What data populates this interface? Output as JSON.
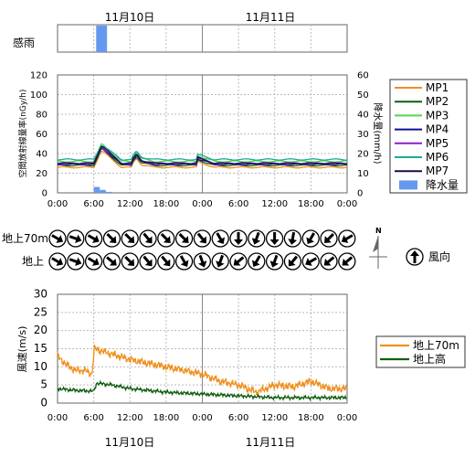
{
  "dates": [
    "11月10日",
    "11月11日"
  ],
  "rain_sense": {
    "label": "感雨",
    "active_periods": [
      [
        6.4,
        8.2
      ]
    ]
  },
  "x_ticks": [
    "0:00",
    "6:00",
    "12:00",
    "18:00",
    "0:00",
    "6:00",
    "12:00",
    "18:00",
    "0:00"
  ],
  "dose_chart": {
    "left_axis_label": "空間放射線量率(nGy/h)",
    "right_axis_label": "降水量(mm/h)",
    "left_ticks": [
      0,
      20,
      40,
      60,
      80,
      100,
      120
    ],
    "right_ticks": [
      0,
      10,
      20,
      30,
      40,
      50,
      60
    ],
    "legend": [
      {
        "name": "MP1",
        "color": "#f0901e"
      },
      {
        "name": "MP2",
        "color": "#0f5f0f"
      },
      {
        "name": "MP3",
        "color": "#4ed84e"
      },
      {
        "name": "MP4",
        "color": "#101090"
      },
      {
        "name": "MP5",
        "color": "#8a1ec8"
      },
      {
        "name": "MP6",
        "color": "#20a898"
      },
      {
        "name": "MP7",
        "color": "#101048"
      },
      {
        "name": "降水量",
        "color": "#6699ee"
      }
    ],
    "series_base": [
      26,
      28,
      32,
      29,
      30,
      34,
      30
    ],
    "series_peak": [
      43,
      45,
      50,
      46,
      47,
      49,
      48
    ],
    "precip": [
      {
        "hour": 6.5,
        "value": 3
      },
      {
        "hour": 7.5,
        "value": 1.5
      },
      {
        "hour": 8.5,
        "value": 0.5
      }
    ]
  },
  "wind_dir": {
    "row1_label": "地上70m",
    "row2_label": "地上",
    "legend_label": "風向",
    "north_label": "N",
    "row1_angles": [
      120,
      110,
      120,
      135,
      135,
      140,
      135,
      135,
      140,
      150,
      180,
      200,
      180,
      190,
      210,
      225,
      240
    ],
    "row2_angles": [
      120,
      110,
      120,
      130,
      135,
      140,
      140,
      150,
      160,
      200,
      230,
      210,
      200,
      220,
      240,
      230,
      230
    ]
  },
  "wind_speed": {
    "y_axis_label": "風速(m/s)",
    "y_ticks": [
      0,
      5,
      10,
      15,
      20,
      25,
      30
    ],
    "legend": [
      {
        "name": "地上70m",
        "color": "#f0901e"
      },
      {
        "name": "地上高",
        "color": "#0f5f0f"
      }
    ],
    "upper_knots": [
      [
        0,
        13
      ],
      [
        1.5,
        10.5
      ],
      [
        3,
        9
      ],
      [
        4.5,
        9
      ],
      [
        5.7,
        8
      ],
      [
        6.1,
        15
      ],
      [
        9,
        13.5
      ],
      [
        12,
        12
      ],
      [
        15,
        11
      ],
      [
        18,
        10
      ],
      [
        21,
        9
      ],
      [
        24,
        8
      ],
      [
        27,
        6
      ],
      [
        30,
        5
      ],
      [
        33,
        3
      ],
      [
        36,
        5
      ],
      [
        39,
        4.5
      ],
      [
        42,
        6
      ],
      [
        45,
        4
      ],
      [
        48,
        4
      ]
    ],
    "lower_knots": [
      [
        0,
        4
      ],
      [
        3,
        3.5
      ],
      [
        6,
        3.3
      ],
      [
        6.5,
        5.5
      ],
      [
        9,
        5
      ],
      [
        12,
        4
      ],
      [
        18,
        3
      ],
      [
        24,
        2.5
      ],
      [
        30,
        2
      ],
      [
        36,
        1.5
      ],
      [
        42,
        1.5
      ],
      [
        48,
        1.5
      ]
    ]
  }
}
